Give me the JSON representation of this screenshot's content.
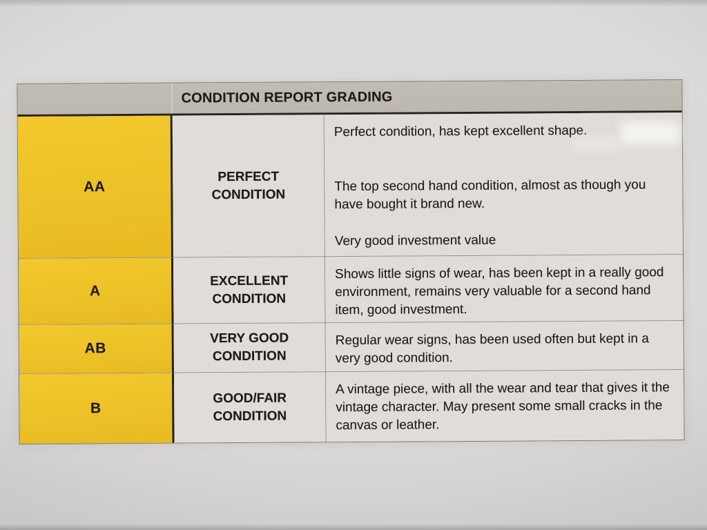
{
  "document": {
    "header_title": "CONDITION REPORT GRADING",
    "rows": [
      {
        "grade": "AA",
        "condition_label": "PERFECT CONDITION",
        "description_line1": "Perfect condition, has kept excellent shape.",
        "description_line2": "The top second hand condition, almost as though you have bought it brand new.",
        "description_line3": "Very good investment value"
      },
      {
        "grade": "A",
        "condition_label": "EXCELLENT CONDITION",
        "description": "Shows little signs of wear, has been kept in a really good environment, remains very valuable for a second hand item, good investment."
      },
      {
        "grade": "AB",
        "condition_label": "VERY GOOD CONDITION",
        "description": "Regular wear signs, has been used often but kept in a very good condition."
      },
      {
        "grade": "B",
        "condition_label": "GOOD/FAIR CONDITION",
        "description": "A vintage piece, with all the wear and tear that gives it the vintage character. May present some small cracks in the canvas or leather."
      }
    ],
    "colors": {
      "grade_column_yellow": "#eec32a",
      "header_gray": "#beb9b1",
      "cell_background": "#e0dcd7",
      "paper_background": "#d8d6d5",
      "divider_black": "#211f1c",
      "text": "#1d1b19"
    }
  }
}
